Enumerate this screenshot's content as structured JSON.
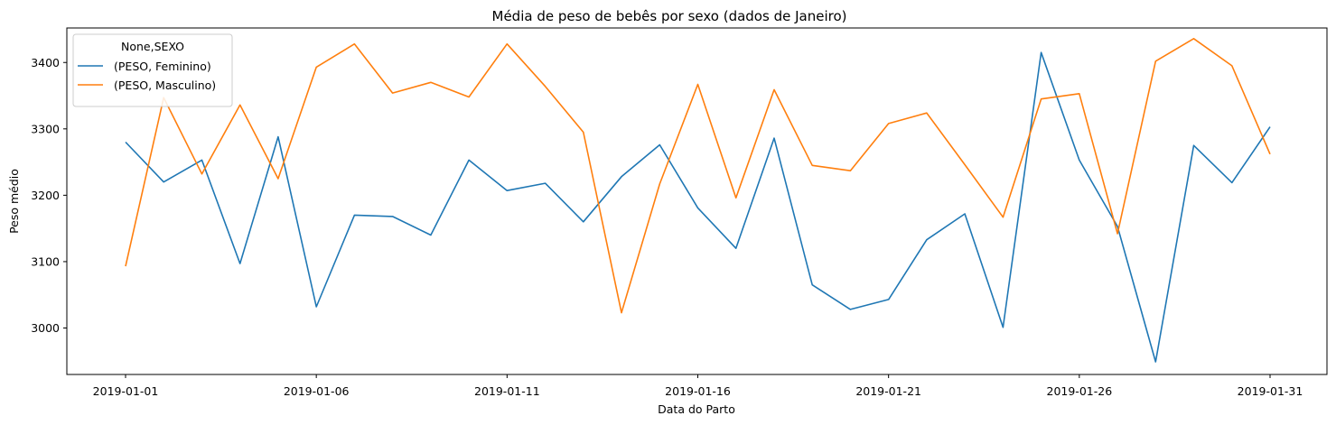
{
  "chart_data": {
    "type": "line",
    "title": "Média de peso de bebês por sexo (dados de Janeiro)",
    "xlabel": "Data do Parto",
    "ylabel": "Peso médio",
    "x": [
      "2019-01-01",
      "2019-01-02",
      "2019-01-03",
      "2019-01-04",
      "2019-01-05",
      "2019-01-06",
      "2019-01-07",
      "2019-01-08",
      "2019-01-09",
      "2019-01-10",
      "2019-01-11",
      "2019-01-12",
      "2019-01-13",
      "2019-01-14",
      "2019-01-15",
      "2019-01-16",
      "2019-01-17",
      "2019-01-18",
      "2019-01-19",
      "2019-01-20",
      "2019-01-21",
      "2019-01-22",
      "2019-01-23",
      "2019-01-24",
      "2019-01-25",
      "2019-01-26",
      "2019-01-27",
      "2019-01-28",
      "2019-01-29",
      "2019-01-30",
      "2019-01-31"
    ],
    "x_ticks": [
      "2019-01-01",
      "2019-01-06",
      "2019-01-11",
      "2019-01-16",
      "2019-01-21",
      "2019-01-26",
      "2019-01-31"
    ],
    "y_ticks": [
      3000,
      3100,
      3200,
      3300,
      3400
    ],
    "ylim": [
      2930,
      3452
    ],
    "grid": false,
    "legend": {
      "title": "None,SEXO",
      "position": "top-left"
    },
    "series": [
      {
        "name": "(PESO, Feminino)",
        "color": "#1f77b4",
        "values": [
          3280,
          3220,
          3253,
          3097,
          3288,
          3032,
          3170,
          3168,
          3140,
          3253,
          3207,
          3218,
          3160,
          3228,
          3276,
          3181,
          3120,
          3286,
          3065,
          3028,
          3043,
          3133,
          3172,
          3001,
          3415,
          3253,
          3153,
          2949,
          3275,
          3219,
          3303
        ]
      },
      {
        "name": "(PESO, Masculino)",
        "color": "#ff7f0e",
        "values": [
          3093,
          3347,
          3232,
          3336,
          3225,
          3393,
          3428,
          3354,
          3370,
          3348,
          3428,
          3364,
          3295,
          3023,
          3217,
          3367,
          3196,
          3359,
          3245,
          3237,
          3308,
          3324,
          3246,
          3167,
          3345,
          3353,
          3142,
          3402,
          3436,
          3395,
          3262
        ]
      }
    ]
  }
}
